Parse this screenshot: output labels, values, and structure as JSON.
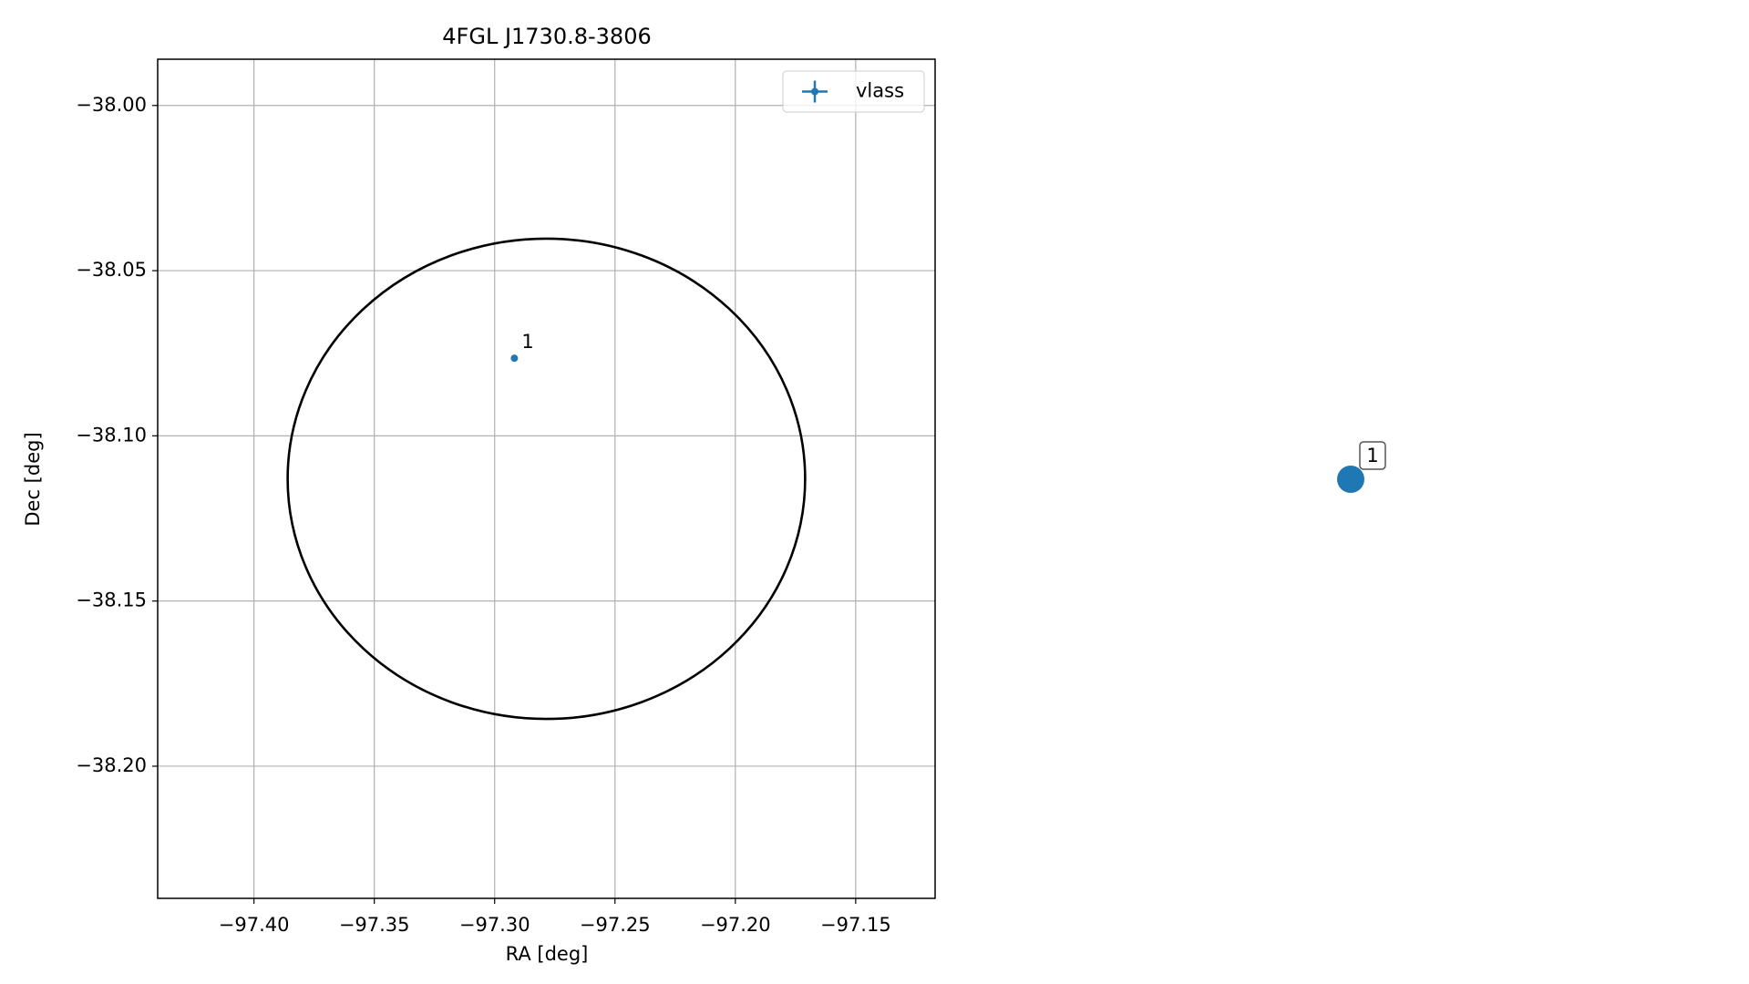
{
  "chart_data": [
    {
      "type": "scatter",
      "title": "4FGL J1730.8-3806",
      "xlabel": "RA [deg]",
      "ylabel": "Dec [deg]",
      "xlim": [
        -97.44,
        -97.117
      ],
      "ylim": [
        -38.24,
        -37.986
      ],
      "xticks": [
        {
          "value": -97.4,
          "label": "−97.40"
        },
        {
          "value": -97.35,
          "label": "−97.35"
        },
        {
          "value": -97.3,
          "label": "−97.30"
        },
        {
          "value": -97.25,
          "label": "−97.25"
        },
        {
          "value": -97.2,
          "label": "−97.20"
        },
        {
          "value": -97.15,
          "label": "−97.15"
        }
      ],
      "yticks": [
        {
          "value": -38.0,
          "label": "−38.00"
        },
        {
          "value": -38.05,
          "label": "−38.05"
        },
        {
          "value": -38.1,
          "label": "−38.10"
        },
        {
          "value": -38.15,
          "label": "−38.15"
        },
        {
          "value": -38.2,
          "label": "−38.20"
        }
      ],
      "grid": true,
      "legend": "upper right",
      "series": [
        {
          "name": "vlass",
          "color": "#1f77b4",
          "x": [
            -97.2918
          ],
          "y": [
            -38.0765
          ],
          "labels": [
            "1"
          ]
        }
      ],
      "ellipse": {
        "center_x": -97.2785,
        "center_y": -38.113,
        "semi_x": 0.1075,
        "semi_y": 0.0727,
        "color": "#000000"
      }
    },
    {
      "type": "markers",
      "series": [
        {
          "color": "#1f77b4",
          "labels": [
            "1"
          ]
        }
      ]
    }
  ]
}
